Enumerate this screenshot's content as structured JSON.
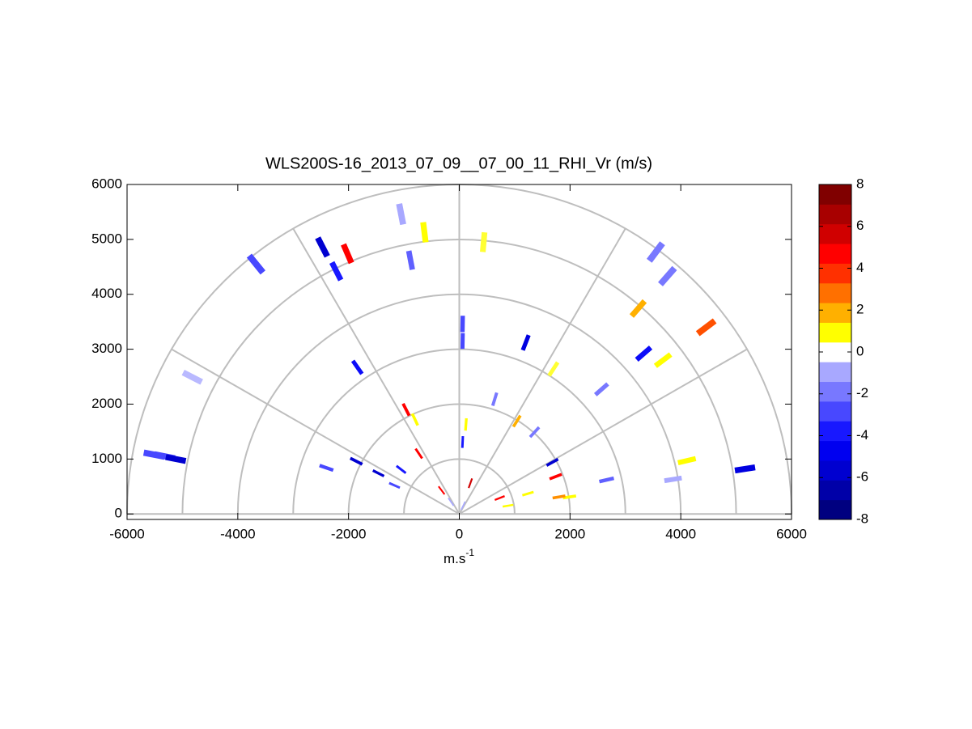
{
  "chart_data": {
    "type": "rhi",
    "title": "WLS200S-16_2013_07_09__07_00_11_RHI_Vr (m/s)",
    "x_label": {
      "text": "m.s",
      "superscript": "-1"
    },
    "xlim": [
      -6000,
      6000
    ],
    "ylim": [
      -100,
      6000
    ],
    "xticks": [
      -6000,
      -4000,
      -2000,
      0,
      2000,
      4000,
      6000
    ],
    "yticks": [
      0,
      1000,
      2000,
      3000,
      4000,
      5000,
      6000
    ],
    "polar_grid": {
      "radii": [
        1000,
        2000,
        3000,
        4000,
        5000,
        6000
      ],
      "angles": [
        0,
        30,
        60,
        90,
        120,
        150,
        180
      ],
      "color": "#bebebe"
    },
    "clim": [
      -8,
      8
    ],
    "cticks": [
      -8,
      -6,
      -4,
      -2,
      0,
      2,
      4,
      6,
      8
    ],
    "colormap": [
      "#000080",
      "#0000a8",
      "#0000d0",
      "#0000f0",
      "#1818ff",
      "#4848ff",
      "#7878ff",
      "#a8a8ff",
      "#ffffff",
      "#ffff00",
      "#ffb000",
      "#ff7000",
      "#ff3000",
      "#ff0000",
      "#d00000",
      "#a80000",
      "#800000"
    ],
    "x": [
      -2470,
      -2020,
      -3670,
      -2220,
      -1050,
      -630,
      -880,
      440,
      3550,
      3760,
      3230,
      4460,
      3330,
      3680,
      1200,
      60,
      60,
      1700,
      2570,
      -1840,
      -4820,
      -5510,
      -5320,
      -5120,
      -2400,
      -1860,
      4110,
      3860,
      5160,
      2660,
      640,
      1040,
      -960,
      -800,
      120,
      1680,
      1740,
      1990,
      1800,
      60,
      200,
      -320,
      -1050,
      -1170,
      -150,
      70,
      880,
      730,
      -1460,
      -730,
      1240,
      1360
    ],
    "y": [
      4860,
      4740,
      4550,
      4420,
      5460,
      5130,
      4620,
      4950,
      4770,
      4330,
      3740,
      3400,
      2920,
      2800,
      3120,
      3460,
      3150,
      2640,
      2270,
      2670,
      2490,
      1080,
      1050,
      1000,
      840,
      960,
      970,
      630,
      820,
      620,
      2090,
      1690,
      1900,
      1720,
      1630,
      940,
      680,
      310,
      310,
      1310,
      560,
      430,
      810,
      520,
      220,
      150,
      150,
      290,
      740,
      1100,
      370,
      1490
    ],
    "values": [
      -6,
      5,
      -3,
      -4,
      -1,
      1,
      -2.5,
      0.8,
      -2,
      -2,
      2,
      3.5,
      -4.5,
      1,
      -5.5,
      -3,
      -3,
      0.8,
      -2,
      -4.5,
      -0.8,
      -3,
      -3,
      -6,
      -3,
      -6,
      1,
      -1,
      -5.5,
      -2.5,
      -2,
      2,
      5,
      1,
      1,
      -6,
      5,
      1,
      2.5,
      -4,
      6,
      5,
      -4,
      -3,
      -1,
      -1,
      1,
      5,
      -6,
      5,
      1,
      -2
    ]
  }
}
